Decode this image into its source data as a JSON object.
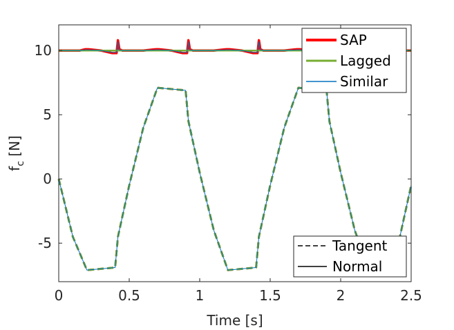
{
  "chart_data": {
    "type": "line",
    "xlabel": "Time [s]",
    "ylabel_main": "f",
    "ylabel_sub": "c",
    "ylabel_unit": " [N]",
    "xlim": [
      0,
      2.5
    ],
    "ylim": [
      -8,
      12
    ],
    "xticks": [
      0,
      0.5,
      1,
      1.5,
      2,
      2.5
    ],
    "xtick_labels": [
      "0",
      "0.5",
      "1",
      "1.5",
      "2",
      "2.5"
    ],
    "yticks": [
      -5,
      0,
      5,
      10
    ],
    "ytick_labels": [
      "-5",
      "0",
      "5",
      "10"
    ],
    "grid": false,
    "legend_methods": {
      "placement": "top-right",
      "entries": [
        {
          "name": "SAP",
          "color": "#ff0000"
        },
        {
          "name": "Lagged",
          "color": "#77ac30"
        },
        {
          "name": "Similar",
          "color": "#0072bd"
        }
      ]
    },
    "legend_components": {
      "placement": "bottom-right",
      "entries": [
        {
          "name": "Tangent",
          "style": "dashed"
        },
        {
          "name": "Normal",
          "style": "solid"
        }
      ]
    },
    "series": [
      {
        "method": "SAP",
        "component": "Normal",
        "color": "#ff0000",
        "x": [
          0,
          0.15,
          0.19,
          0.21,
          0.3,
          0.38,
          0.41,
          0.42,
          0.43,
          0.45,
          0.6,
          0.69,
          0.71,
          0.8,
          0.88,
          0.91,
          0.92,
          0.93,
          0.95,
          1.1,
          1.19,
          1.21,
          1.3,
          1.38,
          1.41,
          1.42,
          1.43,
          1.45,
          1.6,
          1.69,
          1.71,
          1.8,
          1.88,
          1.91,
          1.92,
          1.93,
          1.95,
          2.1,
          2.19,
          2.21,
          2.3,
          2.38,
          2.41,
          2.42,
          2.43,
          2.45,
          2.5
        ],
        "y": [
          10,
          10,
          10.1,
          10.1,
          10,
          9.8,
          9.8,
          10.8,
          10.1,
          10,
          10,
          10.1,
          10.1,
          10,
          9.8,
          9.8,
          10.8,
          10.1,
          10,
          10,
          10.1,
          10.1,
          10,
          9.8,
          9.8,
          10.8,
          10.1,
          10,
          10,
          10.1,
          10.1,
          10,
          9.8,
          9.8,
          10.8,
          10.1,
          10,
          10,
          10.1,
          10.1,
          10,
          9.8,
          9.8,
          10.8,
          10.1,
          10,
          10
        ]
      },
      {
        "method": "Lagged",
        "component": "Normal",
        "color": "#77ac30",
        "x": [
          0,
          2.5
        ],
        "y": [
          10,
          10
        ]
      },
      {
        "method": "Similar",
        "component": "Normal",
        "color": "#0072bd",
        "x": [
          0,
          0.15,
          0.19,
          0.21,
          0.3,
          0.38,
          0.41,
          0.42,
          0.43,
          0.45,
          0.6,
          0.69,
          0.71,
          0.8,
          0.88,
          0.91,
          0.92,
          0.93,
          0.95,
          1.1,
          1.19,
          1.21,
          1.3,
          1.38,
          1.41,
          1.42,
          1.43,
          1.45,
          1.6,
          1.69,
          1.71,
          1.8,
          1.88,
          1.91,
          1.92,
          1.93,
          1.95,
          2.1,
          2.19,
          2.21,
          2.3,
          2.38,
          2.41,
          2.42,
          2.43,
          2.45,
          2.5
        ],
        "y": [
          10,
          10,
          10.05,
          10.05,
          10,
          9.85,
          9.85,
          10.7,
          10.05,
          10,
          10,
          10.05,
          10.05,
          10,
          9.85,
          9.85,
          10.7,
          10.05,
          10,
          10,
          10.05,
          10.05,
          10,
          9.85,
          9.85,
          10.7,
          10.05,
          10,
          10,
          10.05,
          10.05,
          10,
          9.85,
          9.85,
          10.7,
          10.05,
          10,
          10,
          10.05,
          10.05,
          10,
          9.85,
          9.85,
          10.7,
          10.05,
          10,
          10
        ]
      },
      {
        "method": "SAP",
        "component": "Tangent",
        "color": "#ff0000",
        "x": [
          0,
          0.1,
          0.2,
          0.3,
          0.4,
          0.42,
          0.5,
          0.6,
          0.7,
          0.8,
          0.9,
          0.92,
          1.0,
          1.1,
          1.2,
          1.3,
          1.4,
          1.42,
          1.5,
          1.6,
          1.7,
          1.8,
          1.9,
          1.92,
          2.0,
          2.1,
          2.2,
          2.3,
          2.4,
          2.42,
          2.5
        ],
        "y": [
          0,
          -4.5,
          -7.1,
          -7.0,
          -6.9,
          -4.5,
          -0.5,
          4.0,
          7.1,
          7.0,
          6.9,
          4.5,
          0.5,
          -4.0,
          -7.1,
          -7.0,
          -6.9,
          -4.5,
          -0.5,
          4.0,
          7.1,
          7.0,
          6.9,
          4.5,
          0.5,
          -4.0,
          -7.1,
          -7.0,
          -6.9,
          -4.5,
          -0.5
        ]
      },
      {
        "method": "Lagged",
        "component": "Tangent",
        "color": "#77ac30",
        "x": [
          0,
          0.1,
          0.2,
          0.3,
          0.4,
          0.42,
          0.5,
          0.6,
          0.7,
          0.8,
          0.9,
          0.92,
          1.0,
          1.1,
          1.2,
          1.3,
          1.4,
          1.42,
          1.5,
          1.6,
          1.7,
          1.8,
          1.9,
          1.92,
          2.0,
          2.1,
          2.2,
          2.3,
          2.4,
          2.42,
          2.5
        ],
        "y": [
          0,
          -4.5,
          -7.1,
          -7.0,
          -6.9,
          -4.5,
          -0.5,
          4.0,
          7.1,
          7.0,
          6.9,
          4.5,
          0.5,
          -4.0,
          -7.1,
          -7.0,
          -6.9,
          -4.5,
          -0.5,
          4.0,
          7.1,
          7.0,
          6.9,
          4.5,
          0.5,
          -4.0,
          -7.1,
          -7.0,
          -6.9,
          -4.5,
          -0.5
        ]
      },
      {
        "method": "Similar",
        "component": "Tangent",
        "color": "#0072bd",
        "x": [
          0,
          0.1,
          0.2,
          0.3,
          0.4,
          0.42,
          0.5,
          0.6,
          0.7,
          0.8,
          0.9,
          0.92,
          1.0,
          1.1,
          1.2,
          1.3,
          1.4,
          1.42,
          1.5,
          1.6,
          1.7,
          1.8,
          1.9,
          1.92,
          2.0,
          2.1,
          2.2,
          2.3,
          2.4,
          2.42,
          2.5
        ],
        "y": [
          0,
          -4.5,
          -7.1,
          -7.0,
          -6.9,
          -4.5,
          -0.5,
          4.0,
          7.1,
          7.0,
          6.9,
          4.5,
          0.5,
          -4.0,
          -7.1,
          -7.0,
          -6.9,
          -4.5,
          -0.5,
          4.0,
          7.1,
          7.0,
          6.9,
          4.5,
          0.5,
          -4.0,
          -7.1,
          -7.0,
          -6.9,
          -4.5,
          -0.5
        ]
      }
    ]
  }
}
